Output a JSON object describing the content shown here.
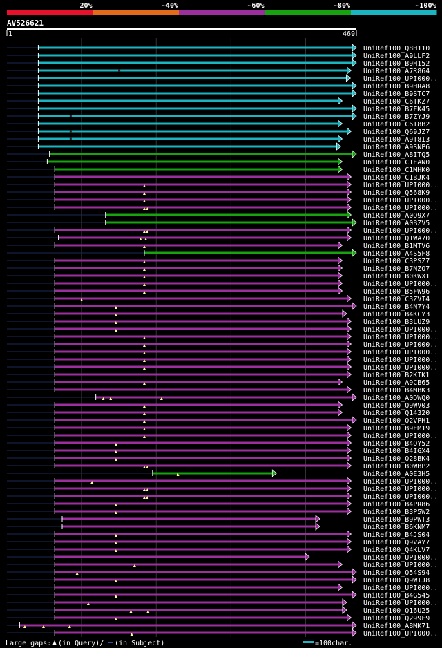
{
  "chart_data": {
    "type": "alignment",
    "title": "AV526621",
    "query_length": 469,
    "axis": {
      "start_label": "1",
      "end_label": "469",
      "range": [
        1,
        469
      ]
    },
    "identity_legend": [
      {
        "label": "20%",
        "color": "#e8112d"
      },
      {
        "label": "~40%",
        "color": "#e36c1b"
      },
      {
        "label": "~60%",
        "color": "#9b2f9e"
      },
      {
        "label": "~80%",
        "color": "#16a30f"
      },
      {
        "label": "~100%",
        "color": "#1ab5c0"
      }
    ],
    "footer": {
      "gaps_label": "Large gaps:",
      "query_gap_label": "(in Query)/",
      "subject_gap_label": "(in Subject)",
      "scale_label": "=100char."
    },
    "hits": [
      {
        "name": "UniRef100_Q8H110",
        "start": 43,
        "end": 469,
        "identity": "~100%",
        "arrow": true,
        "query_gaps": [],
        "subject_gaps": []
      },
      {
        "name": "UniRef100_A9LLF2",
        "start": 43,
        "end": 469,
        "identity": "~100%",
        "arrow": true,
        "query_gaps": [],
        "subject_gaps": []
      },
      {
        "name": "UniRef100_B9H152",
        "start": 43,
        "end": 469,
        "identity": "~100%",
        "arrow": true,
        "query_gaps": [],
        "subject_gaps": []
      },
      {
        "name": "UniRef100_A7R864",
        "start": 43,
        "end": 462,
        "identity": "~100%",
        "arrow": true,
        "query_gaps": [],
        "subject_gaps": [
          150
        ]
      },
      {
        "name": "UniRef100_UPI000..",
        "start": 43,
        "end": 461,
        "identity": "~100%",
        "arrow": true,
        "query_gaps": [],
        "subject_gaps": []
      },
      {
        "name": "UniRef100_B9HRA8",
        "start": 43,
        "end": 469,
        "identity": "~100%",
        "arrow": true,
        "query_gaps": [],
        "subject_gaps": []
      },
      {
        "name": "UniRef100_B9STC7",
        "start": 43,
        "end": 469,
        "identity": "~100%",
        "arrow": true,
        "query_gaps": [],
        "subject_gaps": []
      },
      {
        "name": "UniRef100_C6TKZ7",
        "start": 43,
        "end": 450,
        "identity": "~100%",
        "arrow": true,
        "query_gaps": [],
        "subject_gaps": []
      },
      {
        "name": "UniRef100_B7FK45",
        "start": 43,
        "end": 469,
        "identity": "~100%",
        "arrow": true,
        "query_gaps": [],
        "subject_gaps": []
      },
      {
        "name": "UniRef100_B7ZYJ9",
        "start": 43,
        "end": 469,
        "identity": "~100%",
        "arrow": true,
        "query_gaps": [],
        "subject_gaps": [
          85
        ]
      },
      {
        "name": "UniRef100_C6T8B2",
        "start": 43,
        "end": 450,
        "identity": "~100%",
        "arrow": true,
        "query_gaps": [],
        "subject_gaps": []
      },
      {
        "name": "UniRef100_Q69JZ7",
        "start": 43,
        "end": 462,
        "identity": "~100%",
        "arrow": true,
        "query_gaps": [],
        "subject_gaps": [
          85
        ]
      },
      {
        "name": "UniRef100_A9T8I3",
        "start": 43,
        "end": 450,
        "identity": "~100%",
        "arrow": true,
        "query_gaps": [],
        "subject_gaps": [
          85
        ]
      },
      {
        "name": "UniRef100_A9SNP6",
        "start": 43,
        "end": 448,
        "identity": "~100%",
        "arrow": true,
        "query_gaps": [],
        "subject_gaps": []
      },
      {
        "name": "UniRef100_A8ITQ5",
        "start": 58,
        "end": 469,
        "identity": "~80%",
        "arrow": true,
        "query_gaps": [],
        "subject_gaps": []
      },
      {
        "name": "UniRef100_C1EAN0",
        "start": 55,
        "end": 450,
        "identity": "~80%",
        "arrow": true,
        "query_gaps": [],
        "subject_gaps": []
      },
      {
        "name": "UniRef100_C1MHK0",
        "start": 65,
        "end": 450,
        "identity": "~80%",
        "arrow": true,
        "query_gaps": [],
        "subject_gaps": []
      },
      {
        "name": "UniRef100_C1BJK4",
        "start": 65,
        "end": 462,
        "identity": "~60%",
        "arrow": true,
        "query_gaps": [],
        "subject_gaps": []
      },
      {
        "name": "UniRef100_UPI000..",
        "start": 65,
        "end": 462,
        "identity": "~60%",
        "arrow": true,
        "query_gaps": [
          185
        ],
        "subject_gaps": []
      },
      {
        "name": "UniRef100_Q568K9",
        "start": 65,
        "end": 462,
        "identity": "~60%",
        "arrow": true,
        "query_gaps": [
          185
        ],
        "subject_gaps": []
      },
      {
        "name": "UniRef100_UPI000..",
        "start": 65,
        "end": 462,
        "identity": "~60%",
        "arrow": true,
        "query_gaps": [
          185
        ],
        "subject_gaps": []
      },
      {
        "name": "UniRef100_UPI000..",
        "start": 65,
        "end": 462,
        "identity": "~60%",
        "arrow": true,
        "query_gaps": [
          185,
          189
        ],
        "subject_gaps": []
      },
      {
        "name": "UniRef100_A0Q9X7",
        "start": 133,
        "end": 462,
        "identity": "~80%",
        "arrow": true,
        "query_gaps": [],
        "subject_gaps": []
      },
      {
        "name": "UniRef100_A0BZV5",
        "start": 133,
        "end": 469,
        "identity": "~80%",
        "arrow": true,
        "query_gaps": [],
        "subject_gaps": []
      },
      {
        "name": "UniRef100_UPI000..",
        "start": 65,
        "end": 462,
        "identity": "~60%",
        "arrow": true,
        "query_gaps": [
          185,
          189
        ],
        "subject_gaps": []
      },
      {
        "name": "UniRef100_Q1WA70",
        "start": 70,
        "end": 462,
        "identity": "~60%",
        "arrow": true,
        "query_gaps": [
          180,
          187
        ],
        "subject_gaps": []
      },
      {
        "name": "UniRef100_B1MTV6",
        "start": 65,
        "end": 450,
        "identity": "~60%",
        "arrow": true,
        "query_gaps": [
          185
        ],
        "subject_gaps": []
      },
      {
        "name": "UniRef100_A4S5F8",
        "start": 185,
        "end": 469,
        "identity": "~80%",
        "arrow": true,
        "query_gaps": [],
        "subject_gaps": []
      },
      {
        "name": "UniRef100_C3PSZ7",
        "start": 65,
        "end": 450,
        "identity": "~60%",
        "arrow": true,
        "query_gaps": [
          185
        ],
        "subject_gaps": []
      },
      {
        "name": "UniRef100_B7NZQ7",
        "start": 65,
        "end": 450,
        "identity": "~60%",
        "arrow": true,
        "query_gaps": [
          185
        ],
        "subject_gaps": []
      },
      {
        "name": "UniRef100_B0KWX1",
        "start": 65,
        "end": 450,
        "identity": "~60%",
        "arrow": true,
        "query_gaps": [
          185
        ],
        "subject_gaps": []
      },
      {
        "name": "UniRef100_UPI000..",
        "start": 65,
        "end": 450,
        "identity": "~60%",
        "arrow": true,
        "query_gaps": [
          185
        ],
        "subject_gaps": []
      },
      {
        "name": "UniRef100_B5FW96",
        "start": 65,
        "end": 450,
        "identity": "~60%",
        "arrow": true,
        "query_gaps": [
          185
        ],
        "subject_gaps": []
      },
      {
        "name": "UniRef100_C3ZVI4",
        "start": 65,
        "end": 462,
        "identity": "~60%",
        "arrow": true,
        "query_gaps": [
          101
        ],
        "subject_gaps": []
      },
      {
        "name": "UniRef100_B4N7Y4",
        "start": 65,
        "end": 469,
        "identity": "~60%",
        "arrow": true,
        "query_gaps": [
          147
        ],
        "subject_gaps": []
      },
      {
        "name": "UniRef100_B4KCY3",
        "start": 65,
        "end": 456,
        "identity": "~60%",
        "arrow": true,
        "query_gaps": [
          147
        ],
        "subject_gaps": []
      },
      {
        "name": "UniRef100_B3LUZ9",
        "start": 65,
        "end": 462,
        "identity": "~60%",
        "arrow": true,
        "query_gaps": [
          147
        ],
        "subject_gaps": []
      },
      {
        "name": "UniRef100_UPI000..",
        "start": 65,
        "end": 462,
        "identity": "~60%",
        "arrow": true,
        "query_gaps": [
          147
        ],
        "subject_gaps": []
      },
      {
        "name": "UniRef100_UPI000..",
        "start": 65,
        "end": 462,
        "identity": "~60%",
        "arrow": true,
        "query_gaps": [
          185
        ],
        "subject_gaps": []
      },
      {
        "name": "UniRef100_UPI000..",
        "start": 65,
        "end": 462,
        "identity": "~60%",
        "arrow": true,
        "query_gaps": [
          185
        ],
        "subject_gaps": []
      },
      {
        "name": "UniRef100_UPI000..",
        "start": 65,
        "end": 462,
        "identity": "~60%",
        "arrow": true,
        "query_gaps": [
          185
        ],
        "subject_gaps": []
      },
      {
        "name": "UniRef100_UPI000..",
        "start": 65,
        "end": 462,
        "identity": "~60%",
        "arrow": true,
        "query_gaps": [
          185
        ],
        "subject_gaps": []
      },
      {
        "name": "UniRef100_UPI000..",
        "start": 65,
        "end": 462,
        "identity": "~60%",
        "arrow": true,
        "query_gaps": [
          185
        ],
        "subject_gaps": []
      },
      {
        "name": "UniRef100_B2KIK1",
        "start": 65,
        "end": 462,
        "identity": "~60%",
        "arrow": true,
        "query_gaps": [],
        "subject_gaps": []
      },
      {
        "name": "UniRef100_A9CB65",
        "start": 65,
        "end": 450,
        "identity": "~60%",
        "arrow": true,
        "query_gaps": [
          185
        ],
        "subject_gaps": []
      },
      {
        "name": "UniRef100_B4MBK3",
        "start": 65,
        "end": 462,
        "identity": "~60%",
        "arrow": true,
        "query_gaps": [],
        "subject_gaps": []
      },
      {
        "name": "UniRef100_A0DWQ0",
        "start": 120,
        "end": 469,
        "identity": "~60%",
        "arrow": true,
        "query_gaps": [
          130,
          140,
          208
        ],
        "subject_gaps": []
      },
      {
        "name": "UniRef100_Q9WV03",
        "start": 65,
        "end": 450,
        "identity": "~60%",
        "arrow": true,
        "query_gaps": [
          185
        ],
        "subject_gaps": []
      },
      {
        "name": "UniRef100_Q14320",
        "start": 65,
        "end": 450,
        "identity": "~60%",
        "arrow": true,
        "query_gaps": [
          185
        ],
        "subject_gaps": []
      },
      {
        "name": "UniRef100_Q2VPH1",
        "start": 65,
        "end": 469,
        "identity": "~60%",
        "arrow": true,
        "query_gaps": [
          185
        ],
        "subject_gaps": []
      },
      {
        "name": "UniRef100_B9EM19",
        "start": 65,
        "end": 462,
        "identity": "~60%",
        "arrow": true,
        "query_gaps": [
          185
        ],
        "subject_gaps": []
      },
      {
        "name": "UniRef100_UPI000..",
        "start": 65,
        "end": 462,
        "identity": "~60%",
        "arrow": true,
        "query_gaps": [
          185
        ],
        "subject_gaps": []
      },
      {
        "name": "UniRef100_B4QY52",
        "start": 65,
        "end": 462,
        "identity": "~60%",
        "arrow": true,
        "query_gaps": [
          147
        ],
        "subject_gaps": []
      },
      {
        "name": "UniRef100_B4IGX4",
        "start": 65,
        "end": 462,
        "identity": "~60%",
        "arrow": true,
        "query_gaps": [
          147
        ],
        "subject_gaps": []
      },
      {
        "name": "UniRef100_Q28BK4",
        "start": 65,
        "end": 462,
        "identity": "~60%",
        "arrow": true,
        "query_gaps": [
          147
        ],
        "subject_gaps": []
      },
      {
        "name": "UniRef100_B0WBP2",
        "start": 65,
        "end": 462,
        "identity": "~60%",
        "arrow": true,
        "query_gaps": [
          185,
          189
        ],
        "subject_gaps": []
      },
      {
        "name": "UniRef100_A0E3H5",
        "start": 196,
        "end": 362,
        "identity": "~80%",
        "arrow": true,
        "query_gaps": [
          230
        ],
        "subject_gaps": []
      },
      {
        "name": "UniRef100_UPI000..",
        "start": 65,
        "end": 462,
        "identity": "~60%",
        "arrow": true,
        "query_gaps": [
          115
        ],
        "subject_gaps": []
      },
      {
        "name": "UniRef100_UPI000..",
        "start": 65,
        "end": 462,
        "identity": "~60%",
        "arrow": true,
        "query_gaps": [
          185,
          189
        ],
        "subject_gaps": []
      },
      {
        "name": "UniRef100_UPI000..",
        "start": 65,
        "end": 462,
        "identity": "~60%",
        "arrow": true,
        "query_gaps": [
          185,
          189
        ],
        "subject_gaps": []
      },
      {
        "name": "UniRef100_B4PR86",
        "start": 65,
        "end": 462,
        "identity": "~60%",
        "arrow": true,
        "query_gaps": [
          147
        ],
        "subject_gaps": []
      },
      {
        "name": "UniRef100_B3P5W2",
        "start": 65,
        "end": 462,
        "identity": "~60%",
        "arrow": true,
        "query_gaps": [
          147
        ],
        "subject_gaps": []
      },
      {
        "name": "UniRef100_B9PWT3",
        "start": 75,
        "end": 420,
        "identity": "~60%",
        "arrow": true,
        "query_gaps": [],
        "subject_gaps": []
      },
      {
        "name": "UniRef100_B6KNM7",
        "start": 75,
        "end": 420,
        "identity": "~60%",
        "arrow": true,
        "query_gaps": [],
        "subject_gaps": []
      },
      {
        "name": "UniRef100_B4JS04",
        "start": 65,
        "end": 462,
        "identity": "~60%",
        "arrow": true,
        "query_gaps": [
          147
        ],
        "subject_gaps": []
      },
      {
        "name": "UniRef100_Q9VAY7",
        "start": 65,
        "end": 462,
        "identity": "~60%",
        "arrow": true,
        "query_gaps": [
          147
        ],
        "subject_gaps": []
      },
      {
        "name": "UniRef100_Q4KLV7",
        "start": 65,
        "end": 462,
        "identity": "~60%",
        "arrow": true,
        "query_gaps": [
          147
        ],
        "subject_gaps": []
      },
      {
        "name": "UniRef100_UPI000..",
        "start": 65,
        "end": 406,
        "identity": "~60%",
        "arrow": true,
        "query_gaps": [],
        "subject_gaps": []
      },
      {
        "name": "UniRef100_UPI000..",
        "start": 65,
        "end": 450,
        "identity": "~60%",
        "arrow": true,
        "query_gaps": [
          172
        ],
        "subject_gaps": []
      },
      {
        "name": "UniRef100_Q54S94",
        "start": 65,
        "end": 469,
        "identity": "~60%",
        "arrow": true,
        "query_gaps": [
          95
        ],
        "subject_gaps": []
      },
      {
        "name": "UniRef100_Q9WTJ8",
        "start": 65,
        "end": 469,
        "identity": "~60%",
        "arrow": true,
        "query_gaps": [
          147
        ],
        "subject_gaps": []
      },
      {
        "name": "UniRef100_UPI000..",
        "start": 65,
        "end": 450,
        "identity": "~60%",
        "arrow": true,
        "query_gaps": [],
        "subject_gaps": []
      },
      {
        "name": "UniRef100_B4G545",
        "start": 65,
        "end": 469,
        "identity": "~60%",
        "arrow": true,
        "query_gaps": [
          147
        ],
        "subject_gaps": []
      },
      {
        "name": "UniRef100_UPI000..",
        "start": 65,
        "end": 456,
        "identity": "~60%",
        "arrow": true,
        "query_gaps": [
          110
        ],
        "subject_gaps": []
      },
      {
        "name": "UniRef100_Q16U25",
        "start": 65,
        "end": 456,
        "identity": "~60%",
        "arrow": true,
        "query_gaps": [
          167,
          190
        ],
        "subject_gaps": []
      },
      {
        "name": "UniRef100_Q299F9",
        "start": 65,
        "end": 462,
        "identity": "~60%",
        "arrow": true,
        "query_gaps": [
          147
        ],
        "subject_gaps": []
      },
      {
        "name": "UniRef100_A8MK71",
        "start": 18,
        "end": 469,
        "identity": "~60%",
        "arrow": true,
        "query_gaps": [
          25,
          50,
          85
        ],
        "subject_gaps": []
      },
      {
        "name": "UniRef100_UPI000..",
        "start": 65,
        "end": 469,
        "identity": "~60%",
        "arrow": true,
        "query_gaps": [
          168
        ],
        "subject_gaps": []
      }
    ]
  }
}
